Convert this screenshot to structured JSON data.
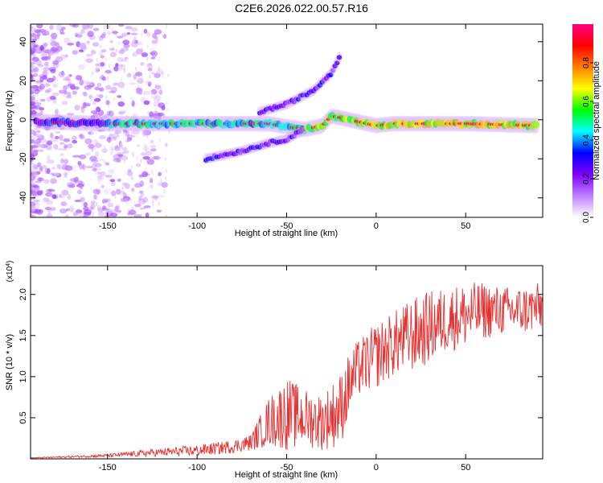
{
  "title": "C2E6.2026.022.00.57.R16",
  "colors": {
    "signal": "#e83030",
    "frame": "#000000"
  },
  "chart_data": [
    {
      "type": "heatmap",
      "xlabel": "Height of straight line (km)",
      "ylabel": "Frequency (Hz)",
      "xlim": [
        -193,
        93
      ],
      "ylim": [
        -50,
        49
      ],
      "xticks": [
        -150,
        -100,
        -50,
        0,
        50
      ],
      "yticks": [
        -40,
        -20,
        0,
        20,
        40
      ],
      "colorbar": {
        "label": "Normalized spectral amplitude",
        "range": [
          0,
          1
        ],
        "ticks": [
          "0.0",
          "0.2",
          "0.4",
          "0.6",
          "0.8"
        ],
        "colormap": [
          "#ffffff",
          "#c080ff",
          "#8000ff",
          "#0000ff",
          "#00ffff",
          "#00ff00",
          "#ffff00",
          "#ff8000",
          "#ff0000",
          "#ff0080"
        ]
      },
      "ridges": [
        {
          "name": "main",
          "x": [
            -190,
            -150,
            -100,
            -60,
            -40,
            -30,
            -25,
            -15,
            0,
            10,
            50,
            90
          ],
          "y": [
            -1,
            -2,
            -2,
            -2,
            -5,
            -3,
            2,
            0,
            -3,
            -2,
            -2,
            -3
          ]
        },
        {
          "name": "upper",
          "x": [
            -65,
            -50,
            -35,
            -25,
            -20
          ],
          "y": [
            4,
            8,
            15,
            24,
            33
          ]
        },
        {
          "name": "lower",
          "x": [
            -95,
            -75,
            -60,
            -50,
            -42
          ],
          "y": [
            -20,
            -16,
            -12,
            -10,
            -6
          ]
        }
      ]
    },
    {
      "type": "line",
      "xlabel": "Height of straight line (km)",
      "ylabel": "SNR (10 * v/v)",
      "yscale_label": "(x10",
      "yscale_exp": "4",
      "xlim": [
        -193,
        93
      ],
      "ylim": [
        0,
        2.35
      ],
      "xticks": [
        -150,
        -100,
        -50,
        0,
        50
      ],
      "yticks": [
        "0.5",
        "1.0",
        "1.5",
        "2.0"
      ],
      "envelope": {
        "x": [
          -193,
          -150,
          -120,
          -100,
          -80,
          -70,
          -60,
          -50,
          -40,
          -30,
          -20,
          -15,
          -10,
          0,
          10,
          20,
          30,
          40,
          50,
          60,
          70,
          80,
          93
        ],
        "mean": [
          0.01,
          0.04,
          0.08,
          0.1,
          0.15,
          0.2,
          0.45,
          0.55,
          0.5,
          0.45,
          0.6,
          0.9,
          1.1,
          1.25,
          1.4,
          1.5,
          1.6,
          1.7,
          1.75,
          1.8,
          1.8,
          1.8,
          1.85
        ],
        "amp": [
          0.005,
          0.02,
          0.05,
          0.07,
          0.08,
          0.1,
          0.3,
          0.45,
          0.35,
          0.35,
          0.45,
          0.4,
          0.35,
          0.4,
          0.4,
          0.45,
          0.45,
          0.4,
          0.4,
          0.35,
          0.3,
          0.3,
          0.3
        ]
      }
    }
  ]
}
